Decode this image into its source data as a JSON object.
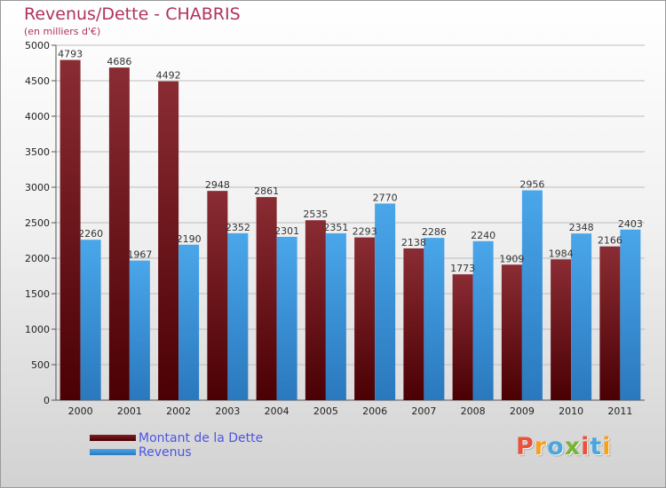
{
  "header": {
    "title": "Revenus/Dette - CHABRIS",
    "subtitle": "(en milliers d'€)"
  },
  "chart_data": {
    "type": "bar",
    "categories": [
      "2000",
      "2001",
      "2002",
      "2003",
      "2004",
      "2005",
      "2006",
      "2007",
      "2008",
      "2009",
      "2010",
      "2011"
    ],
    "series": [
      {
        "name": "Montant de la Dette",
        "color": "#7d1f24",
        "values": [
          4793,
          4686,
          4492,
          2948,
          2861,
          2535,
          2293,
          2138,
          1773,
          1909,
          1984,
          2166
        ]
      },
      {
        "name": "Revenus",
        "color": "#3f98dd",
        "values": [
          2260,
          1967,
          2190,
          2352,
          2301,
          2351,
          2770,
          2286,
          2240,
          2956,
          2348,
          2403
        ]
      }
    ],
    "ylim": [
      0,
      5000
    ],
    "yticks": [
      0,
      500,
      1000,
      1500,
      2000,
      2500,
      3000,
      3500,
      4000,
      4500,
      5000
    ],
    "grid": true,
    "legend_position": "bottom-left"
  },
  "logo": {
    "text": "Proxiti",
    "colors": [
      "#e9533c",
      "#f6a01c",
      "#4aa6dc",
      "#79b535",
      "#e9533c",
      "#4aa6dc",
      "#f6a01c"
    ]
  }
}
